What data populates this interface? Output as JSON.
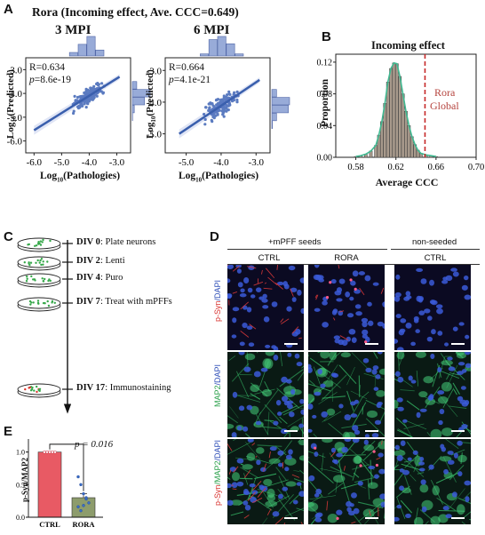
{
  "figure": {
    "panel_a": {
      "letter": "A",
      "title": "Rora (Incoming effect, Ave. CCC=0.649)",
      "plots": [
        {
          "subtitle": "3 MPI",
          "r_text": "R=0.634",
          "p_prefix": "p",
          "p_value": "=8.6e-19"
        },
        {
          "subtitle": "6 MPI",
          "r_text": "R=0.664",
          "p_prefix": "p",
          "p_value": "=4.1e-21"
        }
      ],
      "ylabel_base": "Log",
      "ylabel_sub": "10",
      "ylabel_rest": "(Predicted)",
      "xlabel_base": "Log",
      "xlabel_sub": "10",
      "xlabel_rest": "(Pathologies)"
    },
    "panel_b": {
      "letter": "B",
      "title": "Incoming effect",
      "ylabel": "Proportion",
      "xlabel": "Average CCC",
      "annotation_line1": "Rora",
      "annotation_line2": "Global"
    },
    "panel_c": {
      "letter": "C",
      "steps": [
        {
          "day": "DIV 0",
          "label": ": Plate neurons"
        },
        {
          "day": "DIV 2",
          "label": ": Lenti"
        },
        {
          "day": "DIV 4",
          "label": ": Puro"
        },
        {
          "day": "DIV 7",
          "label": ": Treat with mPFFs"
        },
        {
          "day": "DIV 17",
          "label": ": Immunostaining"
        }
      ]
    },
    "panel_d": {
      "letter": "D",
      "group_seeded": "+mPFF seeds",
      "group_nonseeded": "non-seeded",
      "columns": [
        "CTRL",
        "RORA",
        "CTRL"
      ],
      "rows": [
        {
          "part1": "p-Syn",
          "part2": "/DAPI"
        },
        {
          "part1": "MAP2",
          "part2": "/DAPI"
        },
        {
          "part1": "p-Syn",
          "part2": "/MAP2",
          "part3": "/DAPI"
        }
      ]
    },
    "panel_e": {
      "letter": "E",
      "ylabel": "p-Syn/MAP2",
      "p_text": "p = 0.016"
    }
  },
  "chart_data": [
    {
      "type": "scatter",
      "title": "3 MPI",
      "xlabel": "Log10(Pathologies)",
      "ylabel": "Log10(Predicted)",
      "xlim": [
        -6.3,
        -2.5
      ],
      "ylim": [
        -6.5,
        -2.5
      ],
      "xticks": [
        "-6.0",
        "-5.0",
        "-4.0",
        "-3.0"
      ],
      "yticks": [
        "-3.0",
        "-4.0",
        "-5.0",
        "-6.0"
      ],
      "fit_line": [
        [
          -6.0,
          -5.55
        ],
        [
          -2.9,
          -3.3
        ]
      ],
      "marginal_histograms": true
    },
    {
      "type": "scatter",
      "title": "6 MPI",
      "xlabel": "Log10(Pathologies)",
      "ylabel": "Log10(Predicted)",
      "xlim": [
        -5.6,
        -2.6
      ],
      "ylim": [
        -5.6,
        -2.6
      ],
      "xticks": [
        "-5.0",
        "-4.0",
        "-3.0"
      ],
      "yticks": [
        "-3.0",
        "-4.0",
        "-5.0"
      ],
      "fit_line": [
        [
          -5.2,
          -5.0
        ],
        [
          -2.9,
          -3.3
        ]
      ],
      "marginal_histograms": true
    },
    {
      "type": "bar",
      "title": "Incoming effect",
      "xlabel": "Average CCC",
      "ylabel": "Proportion",
      "xlim": [
        0.56,
        0.7
      ],
      "ylim": [
        0,
        0.13
      ],
      "xticks": [
        "0.58",
        "0.62",
        "0.66",
        "0.70"
      ],
      "yticks": [
        "0.00",
        "0.04",
        "0.08",
        "0.12"
      ],
      "bin_centers": [
        0.58,
        0.585,
        0.59,
        0.595,
        0.6,
        0.603,
        0.606,
        0.609,
        0.612,
        0.615,
        0.618,
        0.621,
        0.624,
        0.627,
        0.63,
        0.633,
        0.636,
        0.639,
        0.642,
        0.645,
        0.65,
        0.655,
        0.66
      ],
      "values": [
        0.001,
        0.002,
        0.004,
        0.008,
        0.015,
        0.028,
        0.045,
        0.068,
        0.095,
        0.112,
        0.119,
        0.118,
        0.102,
        0.08,
        0.058,
        0.04,
        0.026,
        0.016,
        0.009,
        0.005,
        0.003,
        0.002,
        0.001
      ],
      "reference_line": {
        "x": 0.649
      }
    },
    {
      "type": "bar",
      "ylabel": "p-Syn/MAP2",
      "categories": [
        "CTRL",
        "RORA"
      ],
      "values": [
        1.0,
        0.3
      ],
      "errors": [
        0.0,
        0.06
      ],
      "ylim": [
        0,
        1.2
      ],
      "yticks": [
        "0.0",
        "0.5",
        "1.0"
      ],
      "bar_colors": [
        "#e85a64",
        "#8d9c6c"
      ],
      "points": [
        [
          1.0,
          1.0,
          1.0,
          1.0,
          1.0,
          1.0,
          1.0,
          1.0
        ],
        [
          0.62,
          0.5,
          0.36,
          0.3,
          0.22,
          0.16,
          0.1,
          0.18,
          0.28
        ]
      ],
      "significance": "p = 0.016"
    }
  ]
}
